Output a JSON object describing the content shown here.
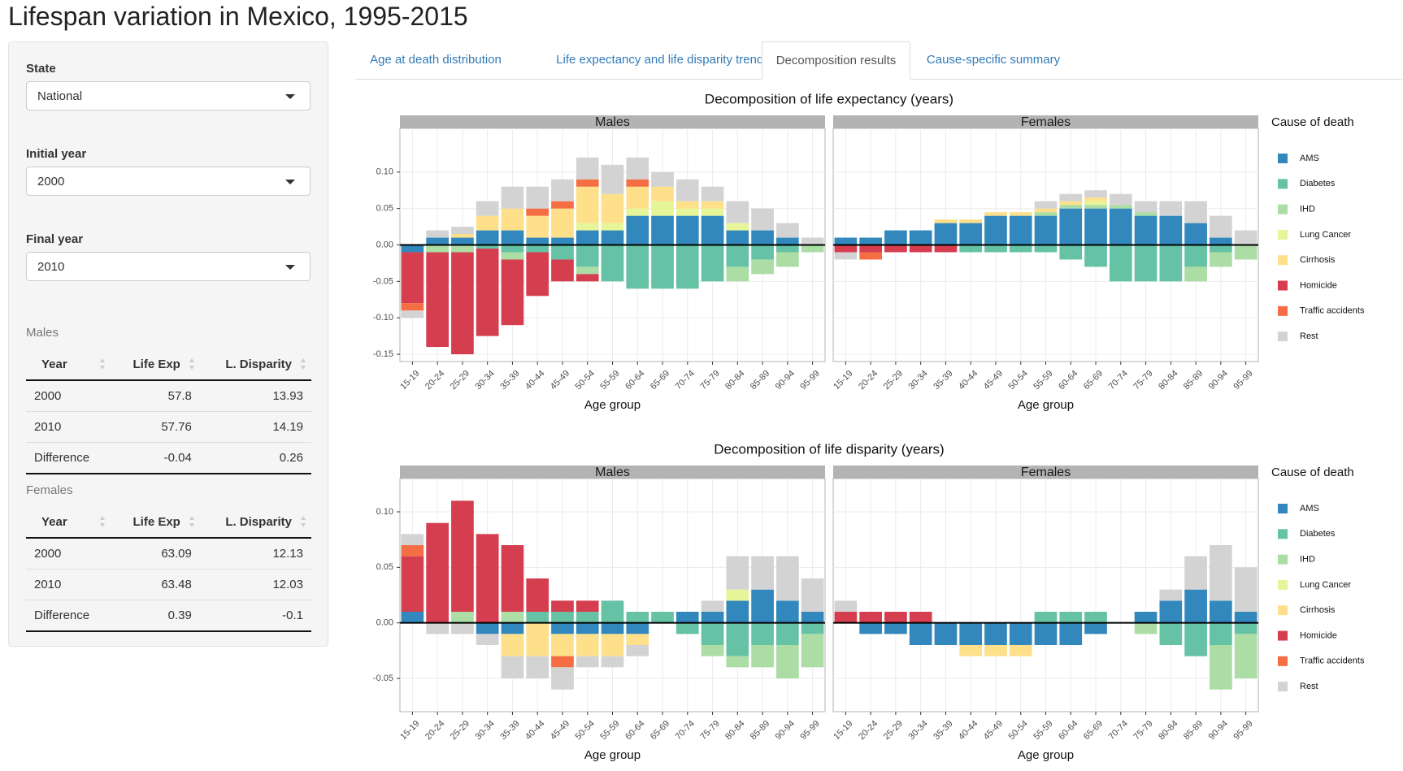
{
  "app": {
    "title": "Lifespan variation in Mexico, 1995-2015"
  },
  "sidebar": {
    "state_label": "State",
    "state_value": "National",
    "initial_year_label": "Initial year",
    "initial_year_value": "2000",
    "final_year_label": "Final year",
    "final_year_value": "2010",
    "males_label": "Males",
    "females_label": "Females",
    "table_headers": [
      "Year",
      "Life Exp",
      "L. Disparity"
    ],
    "males_rows": [
      [
        "2000",
        "57.8",
        "13.93"
      ],
      [
        "2010",
        "57.76",
        "14.19"
      ],
      [
        "Difference",
        "-0.04",
        "0.26"
      ]
    ],
    "females_rows": [
      [
        "2000",
        "63.09",
        "12.13"
      ],
      [
        "2010",
        "63.48",
        "12.03"
      ],
      [
        "Difference",
        "0.39",
        "-0.1"
      ]
    ]
  },
  "tabs": [
    {
      "label": "Age at death distribution",
      "active": false
    },
    {
      "label": "Life expectancy and life disparity trends",
      "active": false
    },
    {
      "label": "Decomposition results",
      "active": true
    },
    {
      "label": "Cause-specific summary",
      "active": false
    }
  ],
  "chart_data": [
    {
      "type": "bar",
      "stacked": true,
      "title": "Decomposition of life expectancy (years)",
      "xlabel": "Age group",
      "ylabel": "",
      "ylim": [
        -0.16,
        0.16
      ],
      "yticks": [
        0.1,
        0.05,
        0.0,
        -0.05,
        -0.1,
        -0.15
      ],
      "ytick_labels": [
        "0.10",
        "0.05",
        "0.00",
        "-0.05",
        "-0.10",
        "-0.15"
      ],
      "grid": true,
      "legend": "right",
      "legend_title": "Cause of death",
      "categories": [
        "15-19",
        "20-24",
        "25-29",
        "30-34",
        "35-39",
        "40-44",
        "45-49",
        "50-54",
        "55-59",
        "60-64",
        "65-69",
        "70-74",
        "75-79",
        "80-84",
        "85-89",
        "90-94",
        "95-99"
      ],
      "causes": [
        "AMS",
        "Diabetes",
        "IHD",
        "Lung Cancer",
        "Cirrhosis",
        "Homicide",
        "Traffic accidents",
        "Rest"
      ],
      "colors": [
        "#3288bd",
        "#66c2a5",
        "#abdda4",
        "#e6f598",
        "#fee08b",
        "#d53e4f",
        "#f46d43",
        "#d3d3d3"
      ],
      "panels": [
        {
          "name": "Males",
          "values": {
            "AMS": [
              -0.01,
              0.01,
              0.01,
              0.02,
              0.02,
              0.01,
              0.01,
              0.02,
              0.02,
              0.04,
              0.04,
              0.04,
              0.04,
              0.02,
              0.02,
              0.01,
              0
            ],
            "Diabetes": [
              0,
              0,
              0,
              -0.005,
              -0.01,
              -0.01,
              -0.02,
              -0.03,
              -0.05,
              -0.06,
              -0.06,
              -0.06,
              -0.05,
              -0.03,
              -0.02,
              -0.01,
              0
            ],
            "IHD": [
              0,
              -0.01,
              -0.01,
              0,
              -0.01,
              0,
              0,
              -0.01,
              0,
              0,
              0,
              0,
              0,
              -0.02,
              -0.02,
              -0.02,
              -0.01
            ],
            "Lung Cancer": [
              0,
              0,
              0,
              0,
              0,
              0,
              0,
              0.01,
              0.01,
              0.01,
              0.02,
              0.01,
              0.01,
              0.01,
              0,
              0,
              0
            ],
            "Cirrhosis": [
              0,
              0,
              0.005,
              0.02,
              0.03,
              0.03,
              0.04,
              0.05,
              0.04,
              0.03,
              0.02,
              0.01,
              0.01,
              0,
              0,
              0,
              0
            ],
            "Homicide": [
              -0.07,
              -0.13,
              -0.14,
              -0.12,
              -0.09,
              -0.06,
              -0.03,
              -0.01,
              0,
              0,
              0,
              0,
              0,
              0,
              0,
              0,
              0
            ],
            "Traffic accidents": [
              -0.01,
              0,
              0,
              0,
              0,
              0.01,
              0.01,
              0.01,
              0,
              0.01,
              0,
              0,
              0,
              0,
              0,
              0,
              0
            ],
            "Rest": [
              -0.01,
              0.01,
              0.01,
              0.02,
              0.03,
              0.03,
              0.03,
              0.03,
              0.04,
              0.03,
              0.02,
              0.03,
              0.02,
              0.03,
              0.03,
              0.02,
              0.01
            ]
          }
        },
        {
          "name": "Females",
          "values": {
            "AMS": [
              0.01,
              0.01,
              0.02,
              0.02,
              0.03,
              0.03,
              0.04,
              0.04,
              0.04,
              0.05,
              0.05,
              0.05,
              0.04,
              0.04,
              0.03,
              0.01,
              0
            ],
            "Diabetes": [
              0,
              0,
              0,
              0,
              0,
              -0.01,
              -0.01,
              -0.01,
              -0.01,
              -0.02,
              -0.03,
              -0.05,
              -0.05,
              -0.05,
              -0.03,
              -0.01,
              0
            ],
            "IHD": [
              0,
              0,
              0,
              0,
              0,
              0,
              0,
              0,
              0.005,
              0.005,
              0.005,
              0.005,
              0.005,
              0,
              -0.02,
              -0.02,
              -0.02
            ],
            "Lung Cancer": [
              0,
              0,
              0,
              0,
              0,
              0,
              0,
              0,
              0,
              0,
              0.005,
              0,
              0,
              0,
              0,
              0,
              0
            ],
            "Cirrhosis": [
              0,
              0,
              0,
              0,
              0.005,
              0.005,
              0.005,
              0.005,
              0.005,
              0.005,
              0.005,
              0,
              0,
              0,
              0,
              0,
              0
            ],
            "Homicide": [
              -0.01,
              -0.01,
              -0.01,
              -0.01,
              -0.01,
              0,
              0,
              0,
              0,
              0,
              0,
              0,
              0,
              0,
              0,
              0,
              0
            ],
            "Traffic accidents": [
              0,
              -0.01,
              0,
              0,
              0,
              0,
              0,
              0,
              0,
              0,
              0,
              0,
              0,
              0,
              0,
              0,
              0
            ],
            "Rest": [
              -0.01,
              0,
              0,
              0,
              0,
              0,
              0,
              0,
              0.01,
              0.01,
              0.01,
              0.015,
              0.015,
              0.02,
              0.03,
              0.03,
              0.02
            ]
          }
        }
      ]
    },
    {
      "type": "bar",
      "stacked": true,
      "title": "Decomposition of life disparity (years)",
      "xlabel": "Age group",
      "ylabel": "",
      "ylim": [
        -0.08,
        0.13
      ],
      "yticks": [
        0.1,
        0.05,
        0.0,
        -0.05
      ],
      "ytick_labels": [
        "0.10",
        "0.05",
        "0.00",
        "-0.05"
      ],
      "grid": true,
      "legend": "right",
      "legend_title": "Cause of death",
      "categories": [
        "15-19",
        "20-24",
        "25-29",
        "30-34",
        "35-39",
        "40-44",
        "45-49",
        "50-54",
        "55-59",
        "60-64",
        "65-69",
        "70-74",
        "75-79",
        "80-84",
        "85-89",
        "90-94",
        "95-99"
      ],
      "causes": [
        "AMS",
        "Diabetes",
        "IHD",
        "Lung Cancer",
        "Cirrhosis",
        "Homicide",
        "Traffic accidents",
        "Rest"
      ],
      "colors": [
        "#3288bd",
        "#66c2a5",
        "#abdda4",
        "#e6f598",
        "#fee08b",
        "#d53e4f",
        "#f46d43",
        "#d3d3d3"
      ],
      "panels": [
        {
          "name": "Males",
          "values": {
            "AMS": [
              0.01,
              0,
              0,
              -0.01,
              -0.01,
              0,
              -0.01,
              -0.01,
              -0.01,
              -0.01,
              0,
              0.01,
              0.01,
              0.02,
              0.03,
              0.02,
              0.01
            ],
            "Diabetes": [
              0,
              0,
              0,
              0,
              0,
              0.01,
              0.01,
              0.01,
              0.02,
              0.01,
              0.01,
              -0.01,
              -0.02,
              -0.03,
              -0.02,
              -0.02,
              -0.01
            ],
            "IHD": [
              0,
              0,
              0.01,
              0,
              0.01,
              0,
              0,
              0,
              0,
              0,
              0,
              0,
              -0.01,
              -0.01,
              -0.02,
              -0.03,
              -0.03
            ],
            "Lung Cancer": [
              0,
              0,
              0,
              0,
              0,
              0,
              0,
              0,
              0,
              0,
              0,
              0,
              0,
              0.01,
              0,
              0,
              0
            ],
            "Cirrhosis": [
              0,
              0,
              0,
              0,
              -0.02,
              -0.03,
              -0.02,
              -0.02,
              -0.02,
              -0.01,
              0,
              0,
              0,
              0,
              0,
              0,
              0
            ],
            "Homicide": [
              0.05,
              0.09,
              0.1,
              0.08,
              0.06,
              0.03,
              0.01,
              0.01,
              0,
              0,
              0,
              0,
              0,
              0,
              0,
              0,
              0
            ],
            "Traffic accidents": [
              0.01,
              0,
              0,
              0,
              0,
              0,
              -0.01,
              0,
              0,
              0,
              0,
              0,
              0,
              0,
              0,
              0,
              0
            ],
            "Rest": [
              0.01,
              -0.01,
              -0.01,
              -0.01,
              -0.02,
              -0.02,
              -0.02,
              -0.01,
              -0.01,
              -0.01,
              0,
              0,
              0.01,
              0.03,
              0.03,
              0.04,
              0.03
            ]
          }
        },
        {
          "name": "Females",
          "values": {
            "AMS": [
              0,
              -0.01,
              -0.01,
              -0.02,
              -0.02,
              -0.02,
              -0.02,
              -0.02,
              -0.02,
              -0.02,
              -0.01,
              0,
              0.01,
              0.02,
              0.03,
              0.02,
              0.01
            ],
            "Diabetes": [
              0,
              0,
              0,
              0,
              0,
              0,
              0,
              0,
              0.01,
              0.01,
              0.01,
              0,
              0,
              -0.02,
              -0.03,
              -0.02,
              -0.01
            ],
            "IHD": [
              0,
              0,
              0,
              0,
              0,
              0,
              0,
              0,
              0,
              0,
              0,
              0,
              -0.01,
              0,
              0,
              -0.04,
              -0.04
            ],
            "Lung Cancer": [
              0,
              0,
              0,
              0,
              0,
              0,
              0,
              0,
              0,
              0,
              0,
              0,
              0,
              0,
              0,
              0,
              0
            ],
            "Cirrhosis": [
              0,
              0,
              0,
              0,
              0,
              -0.01,
              -0.01,
              -0.01,
              0,
              0,
              0,
              0,
              0,
              0,
              0,
              0,
              0
            ],
            "Homicide": [
              0.01,
              0.01,
              0.01,
              0.01,
              0,
              0,
              0,
              0,
              0,
              0,
              0,
              0,
              0,
              0,
              0,
              0,
              0
            ],
            "Traffic accidents": [
              0,
              0,
              0,
              0,
              0,
              0,
              0,
              0,
              0,
              0,
              0,
              0,
              0,
              0,
              0,
              0,
              0
            ],
            "Rest": [
              0.01,
              0,
              0,
              0,
              0,
              0,
              0,
              0,
              0,
              0,
              0,
              0,
              0,
              0.01,
              0.03,
              0.05,
              0.04
            ]
          }
        }
      ]
    }
  ]
}
